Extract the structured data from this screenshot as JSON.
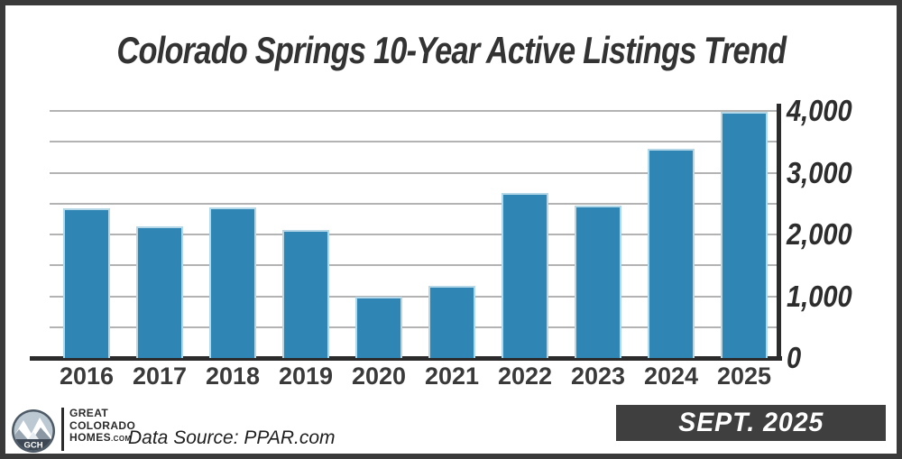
{
  "title": "Colorado Springs 10-Year Active Listings Trend",
  "chart_data": {
    "type": "bar",
    "categories": [
      "2016",
      "2017",
      "2018",
      "2019",
      "2020",
      "2021",
      "2022",
      "2023",
      "2024",
      "2025"
    ],
    "values": [
      2425,
      2130,
      2440,
      2075,
      990,
      1170,
      2670,
      2470,
      3390,
      3990
    ],
    "title": "Colorado Springs 10-Year Active Listings Trend",
    "xlabel": "",
    "ylabel": "",
    "ylim": [
      0,
      4000
    ],
    "ytick_values": [
      0,
      1000,
      2000,
      3000,
      4000
    ],
    "ytick_labels": [
      "0",
      "1,000",
      "2,000",
      "3,000",
      "4,000"
    ],
    "grid_step": 500,
    "grid": true,
    "legend": false,
    "yaxis_side": "right"
  },
  "footer": {
    "logo": {
      "monogram": "GCH",
      "line1": "GREAT",
      "line2": "COLORADO",
      "line3": "HOMES",
      "line3_suffix": ".COM"
    },
    "data_source": "Data Source: PPAR.com",
    "badge": "SEPT. 2025"
  },
  "colors": {
    "frame": "#3a3a3a",
    "bar": "#2f86b4",
    "bar_border": "#b5d8e9",
    "grid": "#b3b3b3",
    "axis": "#2b2b2b",
    "title_text": "#333333",
    "tick_text": "#2d2d2d",
    "xlabel_text": "#3a3a3a",
    "badge_bg": "#3f3f3f",
    "badge_text": "#ffffff"
  }
}
